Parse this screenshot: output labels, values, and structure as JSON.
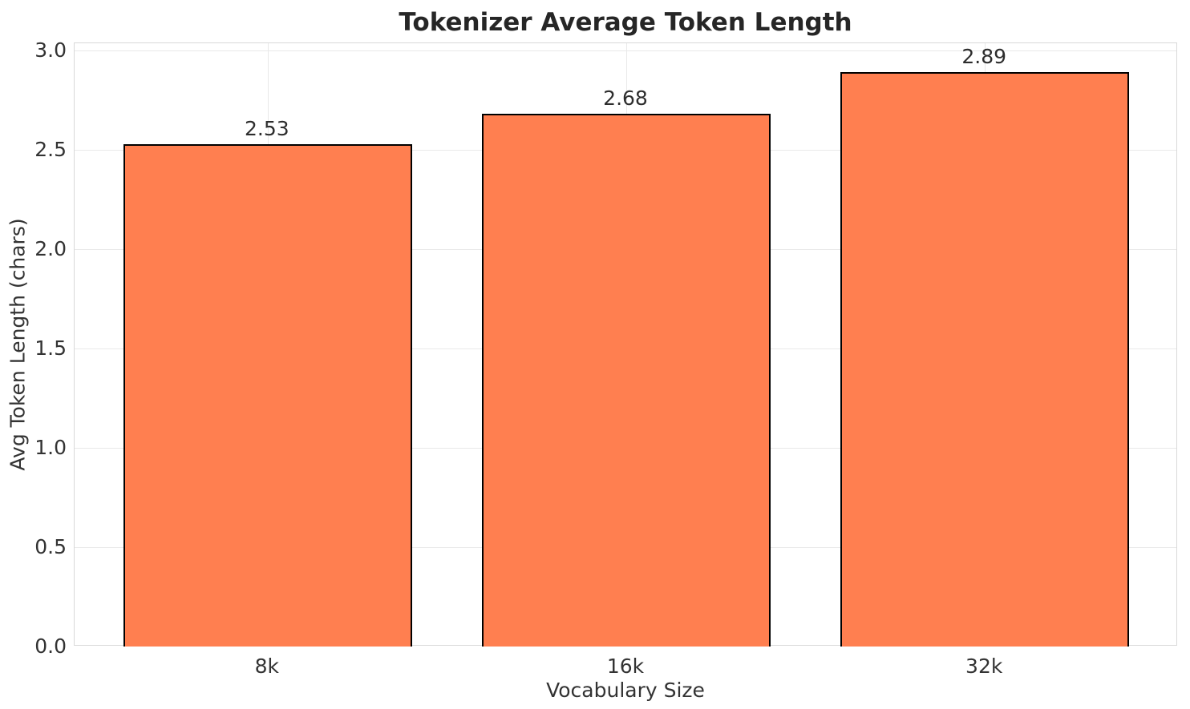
{
  "chart_data": {
    "type": "bar",
    "title": "Tokenizer Average Token Length",
    "xlabel": "Vocabulary Size",
    "ylabel": "Avg Token Length (chars)",
    "categories": [
      "8k",
      "16k",
      "32k"
    ],
    "values": [
      2.53,
      2.68,
      2.89
    ],
    "value_labels": [
      "2.53",
      "2.68",
      "2.89"
    ],
    "yticks": [
      0.0,
      0.5,
      1.0,
      1.5,
      2.0,
      2.5,
      3.0
    ],
    "ytick_labels": [
      "0.0",
      "0.5",
      "1.0",
      "1.5",
      "2.0",
      "2.5",
      "3.0"
    ],
    "ylim": [
      0,
      3.04
    ],
    "grid": true,
    "legend": null,
    "bar_color": "#FF7F50",
    "bar_edge_color": "#000000",
    "text_color": "#333333",
    "grid_color": "#e9e9e9"
  }
}
